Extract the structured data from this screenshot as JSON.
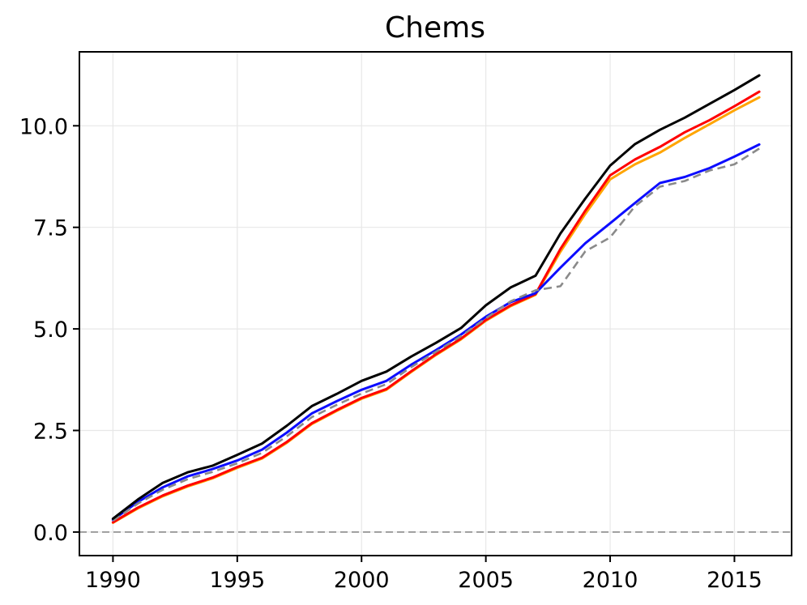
{
  "chart_data": {
    "type": "line",
    "title": "Chems",
    "xlabel": "",
    "ylabel": "",
    "grid": true,
    "legend": "none",
    "xlim": [
      1988.65,
      2017.3
    ],
    "ylim": [
      -0.58,
      11.82
    ],
    "x_ticks": {
      "values": [
        1990,
        1995,
        2000,
        2005,
        2010,
        2015
      ],
      "labels": [
        "1990",
        "1995",
        "2000",
        "2005",
        "2010",
        "2015"
      ]
    },
    "y_ticks": {
      "values": [
        0.0,
        2.5,
        5.0,
        7.5,
        10.0
      ],
      "labels": [
        "0.0",
        "2.5",
        "5.0",
        "7.5",
        "10.0"
      ]
    },
    "zero_line": {
      "y": 0,
      "color": "#8c8c8c",
      "style": "dashed"
    },
    "x": [
      1990,
      1991,
      1992,
      1993,
      1994,
      1995,
      1996,
      1997,
      1998,
      1999,
      2000,
      2001,
      2002,
      2003,
      2004,
      2005,
      2006,
      2007,
      2008,
      2009,
      2010,
      2011,
      2012,
      2013,
      2014,
      2015,
      2016
    ],
    "series": [
      {
        "name": "orange-solid",
        "color": "#ffa500",
        "style": "solid",
        "values": [
          0.23,
          0.58,
          0.88,
          1.12,
          1.32,
          1.58,
          1.81,
          2.2,
          2.66,
          2.98,
          3.28,
          3.5,
          3.94,
          4.36,
          4.74,
          5.2,
          5.56,
          5.84,
          6.9,
          7.83,
          8.68,
          9.05,
          9.34,
          9.7,
          10.04,
          10.38,
          10.7
        ]
      },
      {
        "name": "red-solid",
        "color": "#ff0000",
        "style": "solid",
        "values": [
          0.24,
          0.6,
          0.9,
          1.14,
          1.34,
          1.6,
          1.83,
          2.22,
          2.68,
          3.0,
          3.3,
          3.52,
          3.96,
          4.38,
          4.76,
          5.22,
          5.58,
          5.86,
          6.97,
          7.91,
          8.78,
          9.17,
          9.48,
          9.84,
          10.14,
          10.48,
          10.84
        ]
      },
      {
        "name": "blue-solid",
        "color": "#0d0dff",
        "style": "solid",
        "values": [
          0.3,
          0.74,
          1.1,
          1.37,
          1.55,
          1.76,
          2.03,
          2.45,
          2.92,
          3.22,
          3.5,
          3.72,
          4.12,
          4.48,
          4.86,
          5.3,
          5.66,
          5.88,
          6.51,
          7.11,
          7.6,
          8.1,
          8.59,
          8.74,
          8.96,
          9.24,
          9.54
        ]
      },
      {
        "name": "gray-dashed",
        "color": "#8a8a8a",
        "style": "dashed",
        "values": [
          0.28,
          0.7,
          1.04,
          1.3,
          1.48,
          1.69,
          1.95,
          2.36,
          2.83,
          3.13,
          3.41,
          3.64,
          4.06,
          4.44,
          4.82,
          5.26,
          5.68,
          5.95,
          6.05,
          6.91,
          7.25,
          8.02,
          8.5,
          8.64,
          8.9,
          9.05,
          9.44
        ]
      },
      {
        "name": "black-solid",
        "color": "#000000",
        "style": "solid",
        "values": [
          0.33,
          0.8,
          1.21,
          1.47,
          1.63,
          1.9,
          2.18,
          2.62,
          3.1,
          3.4,
          3.72,
          3.95,
          4.32,
          4.66,
          5.02,
          5.58,
          6.02,
          6.31,
          7.35,
          8.21,
          9.02,
          9.55,
          9.9,
          10.2,
          10.54,
          10.88,
          11.24
        ]
      }
    ]
  }
}
